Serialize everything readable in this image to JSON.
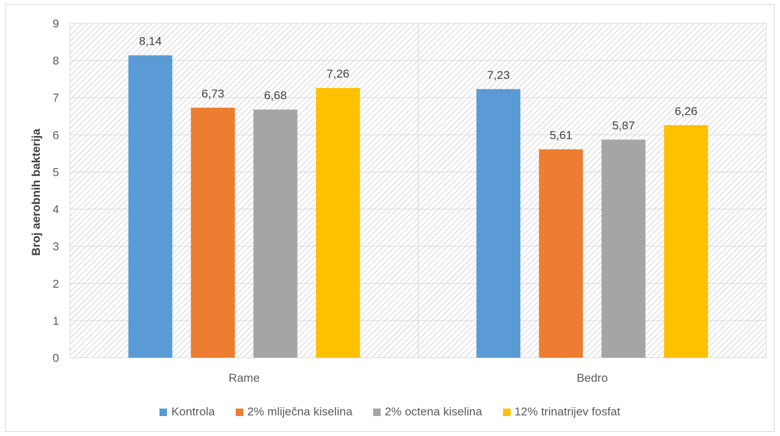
{
  "chart_data": {
    "type": "bar",
    "categories": [
      "Rame",
      "Bedro"
    ],
    "series": [
      {
        "name": "Kontrola",
        "values": [
          8.14,
          7.23
        ],
        "labels": [
          "8,14",
          "7,23"
        ],
        "color": "#5b9bd5"
      },
      {
        "name": "2% mliječna kiselina",
        "values": [
          6.73,
          5.61
        ],
        "labels": [
          "6,73",
          "5,61"
        ],
        "color": "#ed7d31"
      },
      {
        "name": "2% octena kiselina",
        "values": [
          6.68,
          5.87
        ],
        "labels": [
          "6,68",
          "5,87"
        ],
        "color": "#a5a5a5"
      },
      {
        "name": "12% trinatrijev fosfat",
        "values": [
          7.26,
          6.26
        ],
        "labels": [
          "7,26",
          "6,26"
        ],
        "color": "#ffc000"
      }
    ],
    "ylabel": "Broj aerobnih bakterija",
    "xlabel": "",
    "ylim": [
      0,
      9
    ],
    "yticks": [
      "0",
      "1",
      "2",
      "3",
      "4",
      "5",
      "6",
      "7",
      "8",
      "9"
    ],
    "grid": true,
    "plot_background": "hatched-light-gray",
    "legend_position": "bottom"
  }
}
